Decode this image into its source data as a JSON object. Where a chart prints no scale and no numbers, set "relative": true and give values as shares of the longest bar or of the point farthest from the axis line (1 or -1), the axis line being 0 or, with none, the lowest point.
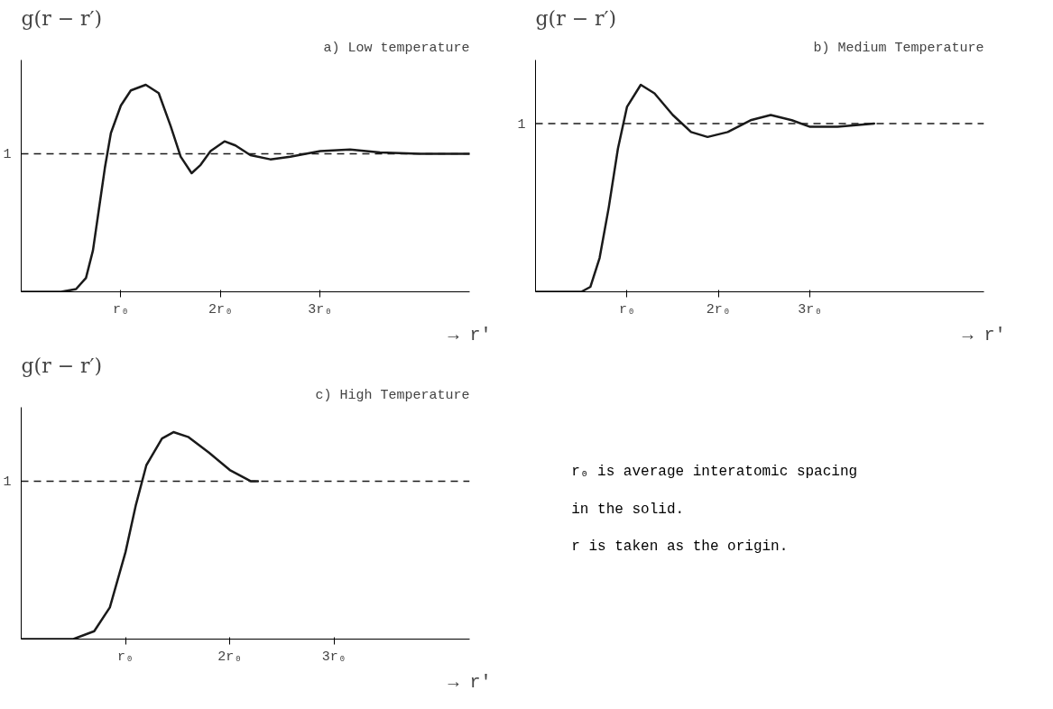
{
  "chart_data": [
    {
      "type": "line",
      "title": "a) Low temperature",
      "ylabel": "g(r − r′)",
      "xlabel": "→ r′",
      "relative": true,
      "xlim": [
        0,
        4.5
      ],
      "xticks": [
        {
          "value": 1,
          "label": "r₀"
        },
        {
          "value": 2,
          "label": "2r₀"
        },
        {
          "value": 3,
          "label": "3r₀"
        }
      ],
      "grid": false,
      "x": [
        0,
        0.4,
        0.55,
        0.65,
        0.72,
        0.78,
        0.84,
        0.9,
        1.0,
        1.1,
        1.25,
        1.38,
        1.5,
        1.6,
        1.71,
        1.8,
        1.9,
        2.04,
        2.15,
        2.3,
        2.5,
        2.7,
        3.0,
        3.3,
        3.6,
        4.0,
        4.5
      ],
      "series": [
        {
          "color": "#1a1a1a",
          "values": [
            0,
            0,
            0.013,
            0.067,
            0.2,
            0.4,
            0.6,
            0.767,
            0.9,
            0.973,
            1,
            0.96,
            0.8,
            0.653,
            0.573,
            0.613,
            0.68,
            0.727,
            0.707,
            0.66,
            0.64,
            0.653,
            0.68,
            0.687,
            0.673,
            0.667,
            0.667
          ]
        }
      ],
      "ref_lines": [
        {
          "axis": "y",
          "value": 0.667,
          "label": "1",
          "line_style": "dashed",
          "color": "#1a1a1a"
        }
      ]
    },
    {
      "type": "line",
      "title": "b) Medium Temperature",
      "ylabel": "g(r − r′)",
      "xlabel": "→ r′",
      "relative": true,
      "xlim": [
        0,
        4.9
      ],
      "xticks": [
        {
          "value": 1,
          "label": "r₀"
        },
        {
          "value": 2,
          "label": "2r₀"
        },
        {
          "value": 3,
          "label": "3r₀"
        }
      ],
      "grid": false,
      "x": [
        0,
        0.5,
        0.6,
        0.7,
        0.8,
        0.9,
        1.0,
        1.15,
        1.3,
        1.5,
        1.7,
        1.88,
        2.1,
        2.35,
        2.57,
        2.8,
        3.0,
        3.3,
        3.7
      ],
      "series": [
        {
          "color": "#1a1a1a",
          "values": [
            0,
            0,
            0.024,
            0.163,
            0.407,
            0.691,
            0.894,
            1,
            0.959,
            0.854,
            0.772,
            0.748,
            0.772,
            0.829,
            0.854,
            0.829,
            0.797,
            0.797,
            0.813
          ]
        }
      ],
      "ref_lines": [
        {
          "axis": "y",
          "value": 0.813,
          "label": "1",
          "line_style": "dashed",
          "color": "#1a1a1a"
        }
      ]
    },
    {
      "type": "line",
      "title": "c) High Temperature",
      "ylabel": "g(r − r′)",
      "xlabel": "→ r′",
      "relative": true,
      "xlim": [
        0,
        4.3
      ],
      "xticks": [
        {
          "value": 1,
          "label": "r₀"
        },
        {
          "value": 2,
          "label": "2r₀"
        },
        {
          "value": 3,
          "label": "3r₀"
        }
      ],
      "grid": false,
      "x": [
        0,
        0.5,
        0.7,
        0.85,
        1.0,
        1.1,
        1.2,
        1.35,
        1.46,
        1.6,
        1.8,
        2.0,
        2.2,
        2.27
      ],
      "series": [
        {
          "color": "#1a1a1a",
          "values": [
            0,
            0,
            0.038,
            0.153,
            0.42,
            0.649,
            0.84,
            0.969,
            1,
            0.977,
            0.901,
            0.817,
            0.763,
            0.763
          ]
        }
      ],
      "ref_lines": [
        {
          "axis": "y",
          "value": 0.763,
          "label": "1",
          "line_style": "dashed",
          "color": "#1a1a1a"
        }
      ]
    },
    {
      "type": "other",
      "annotations": [
        "r₀ is average interatomic spacing",
        "in the solid.",
        "r is taken as the origin."
      ]
    }
  ]
}
